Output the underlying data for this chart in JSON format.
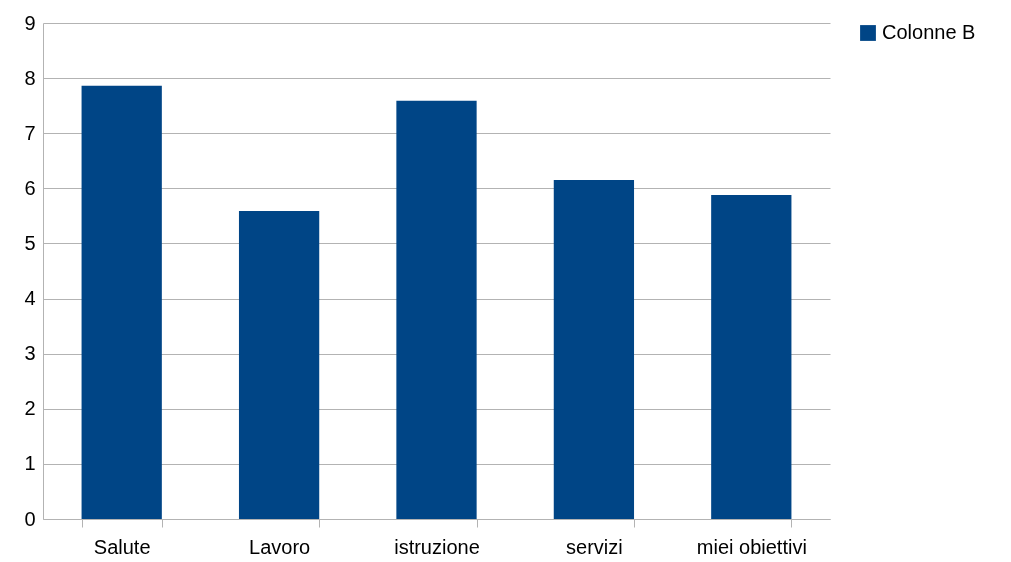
{
  "chart_data": {
    "type": "bar",
    "categories": [
      "Salute",
      "Lavoro",
      "istruzione",
      "servizi",
      "miei obiettivi"
    ],
    "series": [
      {
        "name": "Colonne B",
        "color": "#004586",
        "values": [
          7.86,
          5.59,
          7.59,
          6.15,
          5.88
        ]
      }
    ],
    "ylim": [
      0,
      9
    ],
    "yticks": [
      0,
      1,
      2,
      3,
      4,
      5,
      6,
      7,
      8,
      9
    ],
    "grid": "y",
    "legend": "right"
  }
}
